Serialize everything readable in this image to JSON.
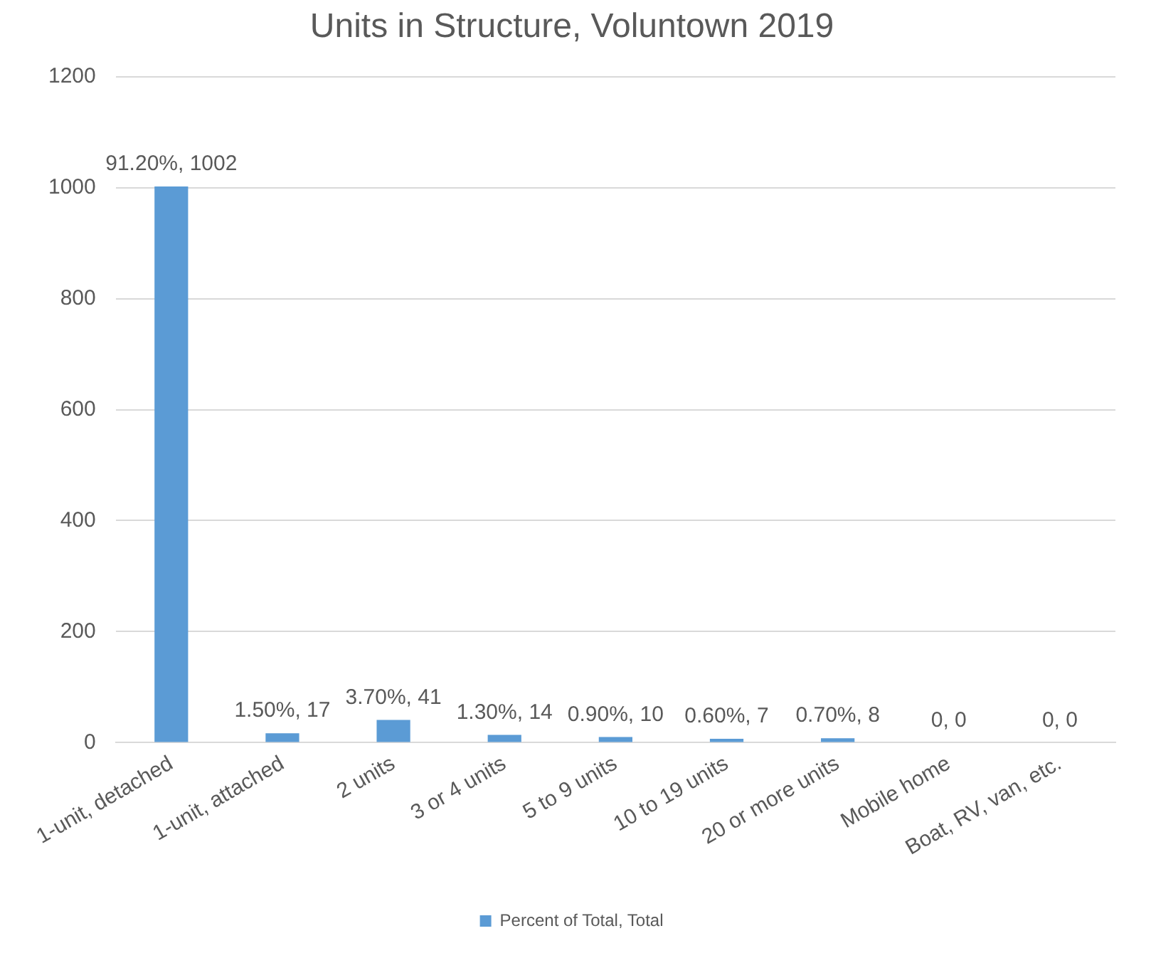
{
  "chart_data": {
    "type": "bar",
    "title": "Units in Structure, Voluntown 2019",
    "categories": [
      "1-unit, detached",
      "1-unit, attached",
      "2 units",
      "3 or 4 units",
      "5 to 9 units",
      "10 to 19 units",
      "20 or more units",
      "Mobile home",
      "Boat, RV, van, etc."
    ],
    "series": [
      {
        "name": "Percent of Total, Total",
        "color": "#5b9bd5",
        "values": [
          1002,
          17,
          41,
          14,
          10,
          7,
          8,
          0,
          0
        ],
        "value_labels": [
          "91.20%, 1002",
          "1.50%, 17",
          "3.70%, 41",
          "1.30%, 14",
          "0.90%, 10",
          "0.60%, 7",
          "0.70%, 8",
          "0, 0",
          "0, 0"
        ]
      }
    ],
    "ylim": [
      0,
      1200
    ],
    "yticks": [
      0,
      200,
      400,
      600,
      800,
      1000,
      1200
    ],
    "grid": "y",
    "legend": "bottom"
  }
}
